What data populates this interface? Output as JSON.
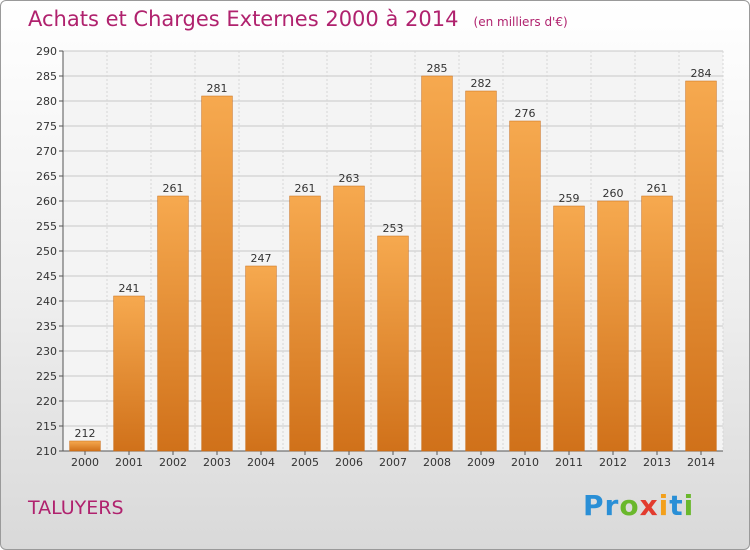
{
  "title": "Achats et Charges Externes 2000 à 2014",
  "unit": "(en milliers d'€)",
  "place": "TALUYERS",
  "logo": {
    "letters": [
      "P",
      "r",
      "o",
      "x",
      "i",
      "t",
      "i"
    ],
    "colors": [
      "#2a8fd6",
      "#2a8fd6",
      "#6ab82c",
      "#e23b2e",
      "#f3a01b",
      "#2a8fd6",
      "#6ab82c"
    ]
  },
  "colors": {
    "bar_light": "#f6a94f",
    "bar_dark": "#d0711a",
    "title": "#b0226e"
  },
  "chart_data": {
    "type": "bar",
    "title": "Achats et Charges Externes 2000 à 2014",
    "categories": [
      "2000",
      "2001",
      "2002",
      "2003",
      "2004",
      "2005",
      "2006",
      "2007",
      "2008",
      "2009",
      "2010",
      "2011",
      "2012",
      "2013",
      "2014"
    ],
    "values": [
      212,
      241,
      261,
      281,
      247,
      261,
      263,
      253,
      285,
      282,
      276,
      259,
      260,
      261,
      284
    ],
    "data_labels": [
      "212",
      "241",
      "261",
      "281",
      "247",
      "261",
      "263",
      "253",
      "285",
      "282",
      "276",
      "259",
      "260",
      "261",
      "284"
    ],
    "ylim": [
      210,
      290
    ],
    "yticks": [
      210,
      215,
      220,
      225,
      230,
      235,
      240,
      245,
      250,
      255,
      260,
      265,
      270,
      275,
      280,
      285,
      290
    ],
    "ytick_labels": [
      "210",
      "215",
      "220",
      "225",
      "230",
      "235",
      "240",
      "245",
      "250",
      "255",
      "260",
      "265",
      "270",
      "275",
      "280",
      "285",
      "290"
    ],
    "grid": true,
    "xlabel": "",
    "ylabel": ""
  }
}
